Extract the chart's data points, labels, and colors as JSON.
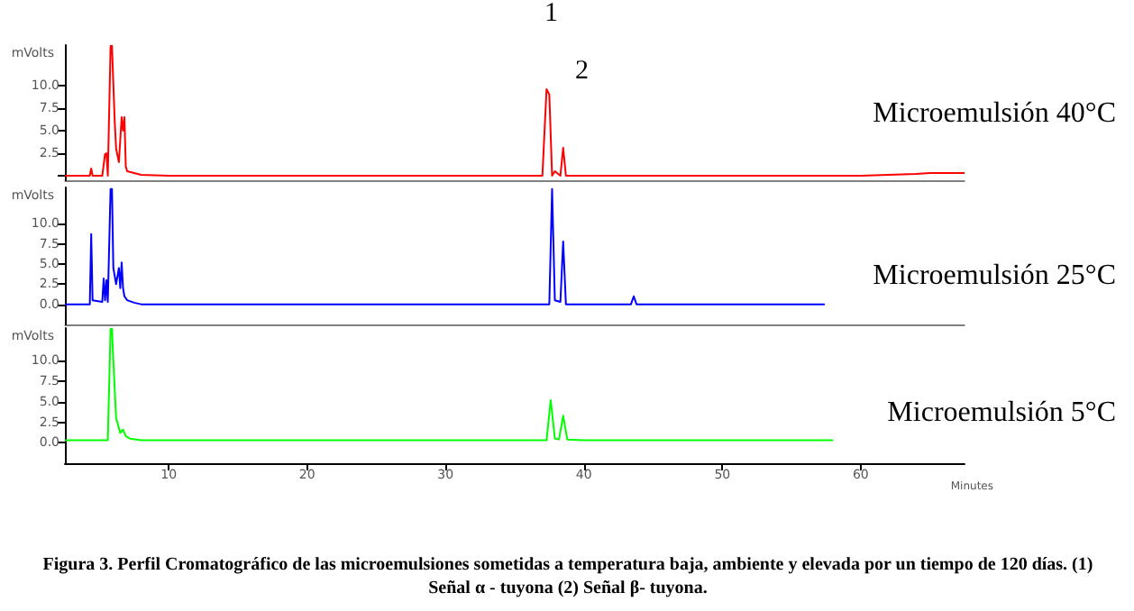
{
  "chart_data": [
    {
      "type": "line",
      "title": "Microemulsión 40°C",
      "ylabel": "mVolts",
      "xlim": [
        2.5,
        67.5
      ],
      "ylim": [
        -0.5,
        14.5
      ],
      "yticks": [
        {
          "value": 0,
          "label": null
        },
        {
          "value": 2.5,
          "label": "2.5"
        },
        {
          "value": 5,
          "label": "5.0"
        },
        {
          "value": 7.5,
          "label": "7.5"
        },
        {
          "value": 10,
          "label": "10.0"
        }
      ],
      "tick_labels": "y",
      "x": [
        2.5,
        4.3,
        4.4,
        4.5,
        5.2,
        5.4,
        5.5,
        5.6,
        5.8,
        5.9,
        6.1,
        6.2,
        6.4,
        6.6,
        6.7,
        6.8,
        6.9,
        7.0,
        7.5,
        8,
        10,
        37.0,
        37.3,
        37.5,
        37.7,
        37.9,
        38.3,
        38.5,
        38.7,
        38.9,
        40,
        50,
        60,
        64,
        65,
        67.5
      ],
      "series": [
        {
          "color": "#ff0000",
          "values": [
            0,
            0,
            0.8,
            0,
            0,
            2.4,
            2.5,
            0,
            14.4,
            14.4,
            6,
            3,
            1.5,
            6.5,
            5,
            6.5,
            1,
            0.5,
            0.3,
            0.1,
            0,
            0,
            9.6,
            9.0,
            0,
            0.5,
            0,
            3.1,
            0,
            0,
            0,
            0,
            0,
            0.2,
            0.3,
            0.3
          ]
        }
      ],
      "annotations": [
        "1",
        "2"
      ]
    },
    {
      "type": "line",
      "title": "Microemulsión 25°C",
      "ylabel": "mVolts",
      "xlim": [
        2.5,
        67.5
      ],
      "ylim": [
        -2.5,
        14.5
      ],
      "yticks": [
        {
          "value": 0,
          "label": "0.0"
        },
        {
          "value": 2.5,
          "label": "2.5"
        },
        {
          "value": 5,
          "label": "5.0"
        },
        {
          "value": 7.5,
          "label": "7.5"
        },
        {
          "value": 10,
          "label": "10.0"
        }
      ],
      "tick_labels": "y",
      "x": [
        2.5,
        4.3,
        4.4,
        4.5,
        5.2,
        5.3,
        5.4,
        5.5,
        5.6,
        5.8,
        5.9,
        6.0,
        6.2,
        6.4,
        6.5,
        6.6,
        6.7,
        6.8,
        7.0,
        7.5,
        8,
        37.5,
        37.7,
        37.9,
        38.3,
        38.5,
        38.7,
        43.4,
        43.6,
        43.8,
        57.4
      ],
      "series": [
        {
          "color": "#0000ff",
          "values": [
            0,
            0,
            8.7,
            0.5,
            0.3,
            3.2,
            0.5,
            3.0,
            0.3,
            14.3,
            14.3,
            4.5,
            2.5,
            4.5,
            2,
            5.2,
            2.0,
            1,
            0.5,
            0.2,
            0,
            0,
            14.3,
            0.5,
            0.3,
            7.8,
            0,
            0,
            1,
            0,
            0
          ]
        }
      ]
    },
    {
      "type": "line",
      "title": "Microemulsión 5°C",
      "ylabel": "mVolts",
      "xlabel": "Minutes",
      "xlim": [
        2.5,
        67.5
      ],
      "ylim": [
        -2.5,
        14
      ],
      "yticks": [
        {
          "value": 0,
          "label": "0.0"
        },
        {
          "value": 2.5,
          "label": "2.5"
        },
        {
          "value": 5,
          "label": "5.0"
        },
        {
          "value": 7.5,
          "label": "7.5"
        },
        {
          "value": 10,
          "label": "10.0"
        }
      ],
      "xticks": [
        10,
        20,
        30,
        40,
        50,
        60
      ],
      "x": [
        2.5,
        5.6,
        5.8,
        5.9,
        6.0,
        6.2,
        6.5,
        6.7,
        6.9,
        7.2,
        8,
        37.3,
        37.6,
        37.9,
        38.2,
        38.5,
        38.8,
        40,
        58.0
      ],
      "series": [
        {
          "color": "#00ff00",
          "values": [
            0.3,
            0.3,
            13.9,
            13.9,
            10,
            3,
            1.2,
            1.6,
            0.8,
            0.5,
            0.3,
            0.3,
            5.2,
            0.5,
            0.4,
            3.3,
            0.4,
            0.3,
            0.3
          ]
        }
      ],
      "annotations": [
        "Figura 3.  Perfil Cromatográfico de las microemulsiones sometidas a temperatura baja, ambiente y elevada por un tiempo de 120 días. (1) Señal α - tuyona (2) Señal β- tuyona."
      ]
    }
  ]
}
